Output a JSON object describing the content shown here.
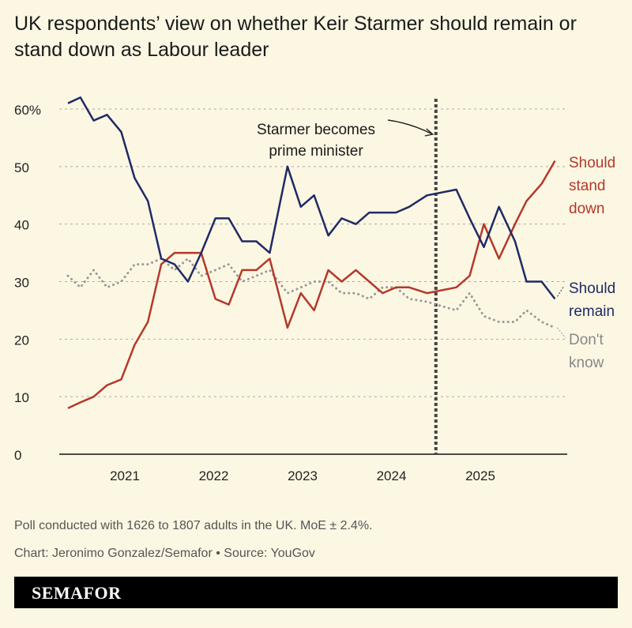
{
  "chart_data": {
    "type": "line",
    "title": "UK respondents’ view on whether Keir Starmer should remain or stand down as Labour leader",
    "ylim": [
      0,
      60
    ],
    "yticks": [
      "0",
      "10",
      "20",
      "30",
      "40",
      "50",
      "60%"
    ],
    "ytick_values": [
      0,
      10,
      20,
      30,
      40,
      50,
      60
    ],
    "xticks": [
      "2021",
      "2022",
      "2023",
      "2024",
      "2025"
    ],
    "xtick_values": [
      2021,
      2022,
      2023,
      2024,
      2025
    ],
    "grid": "horizontal dashed",
    "x": [
      2020.36,
      2020.5,
      2020.65,
      2020.8,
      2020.96,
      2021.11,
      2021.26,
      2021.41,
      2021.56,
      2021.71,
      2021.86,
      2022.02,
      2022.17,
      2022.32,
      2022.48,
      2022.63,
      2022.83,
      2022.98,
      2023.13,
      2023.29,
      2023.44,
      2023.6,
      2023.75,
      2023.9,
      2024.05,
      2024.2,
      2024.4,
      2024.73,
      2024.88,
      2025.04,
      2025.21,
      2025.39,
      2025.52,
      2025.69,
      2025.84
    ],
    "series": [
      {
        "name": "Should remain",
        "color": "#1f2a66",
        "style": "solid",
        "values": [
          61,
          62,
          58,
          59,
          56,
          48,
          44,
          34,
          33,
          30,
          35,
          41,
          41,
          37,
          37,
          35,
          50,
          43,
          45,
          38,
          41,
          40,
          42,
          42,
          42,
          43,
          45,
          46,
          41,
          36,
          43,
          37,
          30,
          30,
          27
        ]
      },
      {
        "name": "Should stand down",
        "color": "#b5382a",
        "style": "solid",
        "values": [
          8,
          9,
          10,
          12,
          13,
          19,
          23,
          33,
          35,
          35,
          35,
          27,
          26,
          32,
          32,
          34,
          22,
          28,
          25,
          32,
          30,
          32,
          30,
          28,
          29,
          29,
          28,
          29,
          31,
          40,
          34,
          40,
          44,
          47,
          51
        ]
      },
      {
        "name": "Don't know",
        "color": "#999999",
        "style": "dotted",
        "values": [
          31,
          29,
          32,
          29,
          30,
          33,
          33,
          34,
          32,
          34,
          31,
          32,
          33,
          30,
          31,
          32,
          28,
          29,
          30,
          30,
          28,
          28,
          27,
          29,
          29,
          27,
          26.5,
          25,
          28,
          24,
          23,
          23,
          25,
          23,
          22
        ]
      }
    ],
    "labels": {
      "remain": [
        "Should",
        "remain"
      ],
      "stand_down": [
        "Should",
        "stand",
        "down"
      ],
      "dont_know": [
        "Don't",
        "know"
      ]
    },
    "annotation": {
      "x": 2024.5,
      "text": [
        "Starmer becomes",
        "prime minister"
      ]
    }
  },
  "footer": {
    "note": "Poll conducted with 1626 to 1807 adults in the UK. MoE ± 2.4%.",
    "credit": "Chart: Jeronimo Gonzalez/Semafor • Source: YouGov"
  },
  "brand": {
    "logo": "SEMAFOR"
  }
}
